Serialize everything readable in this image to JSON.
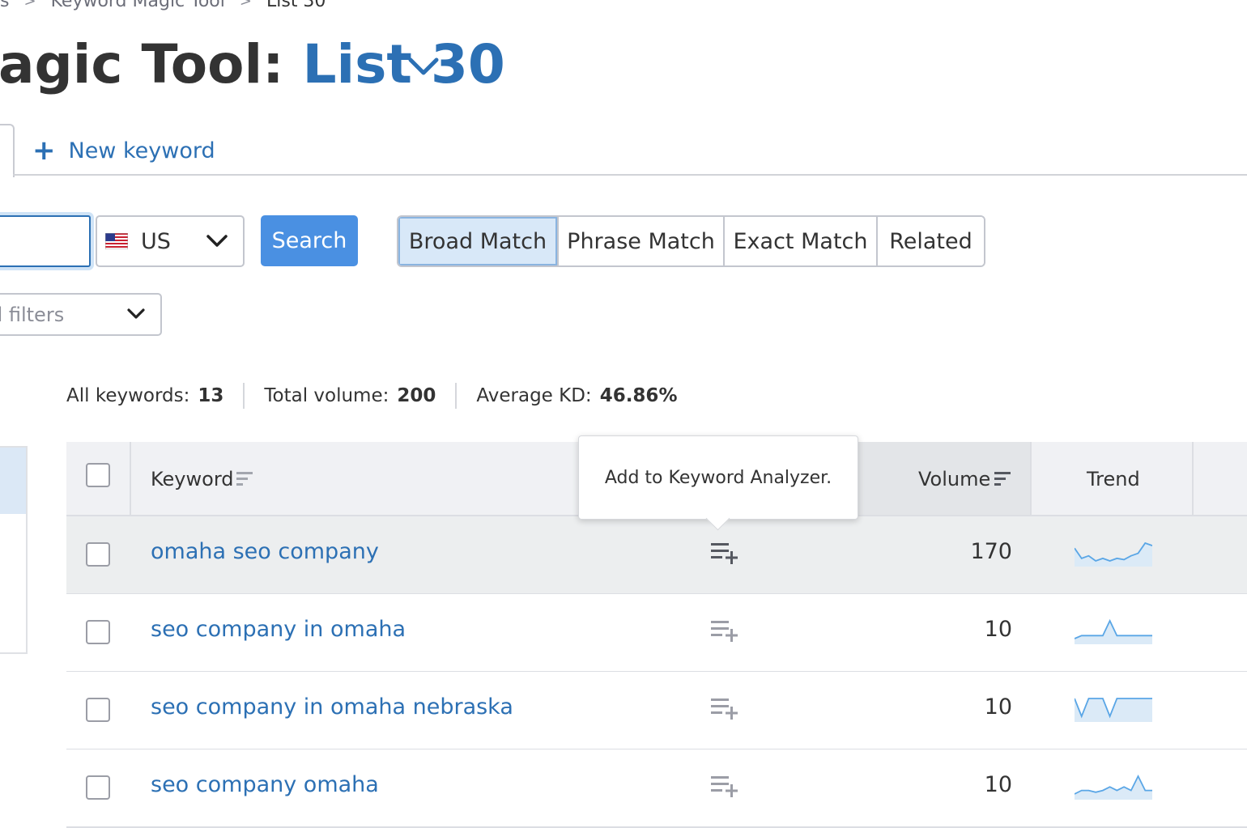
{
  "breadcrumb": {
    "items": [
      "s",
      "Keyword Magic Tool",
      "List 30"
    ]
  },
  "header": {
    "title_prefix": "agic Tool: ",
    "list_name": "List 30"
  },
  "tabs": {
    "new_keyword": "New keyword"
  },
  "search": {
    "input_value": "",
    "database_label": "US",
    "search_button": "Search"
  },
  "match_types": [
    {
      "label": "Broad Match",
      "active": true
    },
    {
      "label": "Phrase Match",
      "active": false
    },
    {
      "label": "Exact Match",
      "active": false
    },
    {
      "label": "Related",
      "active": false
    }
  ],
  "filters": {
    "label": "d filters"
  },
  "stats": {
    "all_keywords_label": "All keywords:",
    "all_keywords_value": "13",
    "total_volume_label": "Total volume:",
    "total_volume_value": "200",
    "avg_kd_label": "Average KD:",
    "avg_kd_value": "46.86%"
  },
  "table": {
    "headers": {
      "keyword": "Keyword",
      "volume": "Volume",
      "trend": "Trend"
    },
    "rows": [
      {
        "keyword": "omaha seo company",
        "volume": "170",
        "trend": [
          6,
          2,
          3,
          1,
          2,
          1,
          2,
          1.5,
          3,
          4,
          8,
          7
        ]
      },
      {
        "keyword": "seo company in omaha",
        "volume": "10",
        "trend": [
          0,
          1,
          1,
          1,
          1,
          6,
          1,
          1,
          1,
          1,
          1,
          1
        ]
      },
      {
        "keyword": "seo company in omaha nebraska",
        "volume": "10",
        "trend": [
          5,
          0,
          5,
          5,
          5,
          0,
          5,
          5,
          5,
          5,
          5,
          5
        ]
      },
      {
        "keyword": "seo company omaha",
        "volume": "10",
        "trend": [
          0,
          1,
          1,
          0.5,
          1,
          2,
          1,
          2,
          1,
          5,
          1,
          1
        ]
      }
    ]
  },
  "tooltip": {
    "text": "Add to Keyword Analyzer."
  },
  "colors": {
    "accent": "#2c70b4",
    "search_button": "#4a90e2",
    "active_match": "#d8e8f8",
    "trend_line": "#5aa6e6",
    "trend_fill": "#dbeaf7"
  },
  "icons": {
    "title_dropdown": "chevron-down-icon",
    "new_keyword": "plus-icon",
    "database": "us-flag-icon",
    "sort": "sort-icon",
    "add_to_analyzer": "playlist-add-icon"
  }
}
